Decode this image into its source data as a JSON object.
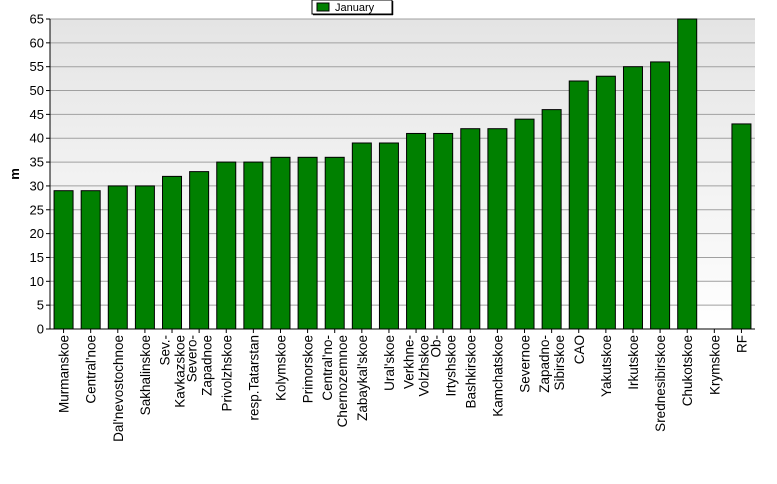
{
  "chart_data": {
    "type": "bar",
    "title": "",
    "xlabel": "",
    "ylabel": "m",
    "ylim": [
      0,
      65
    ],
    "yticks": [
      0,
      5,
      10,
      15,
      20,
      25,
      30,
      35,
      40,
      45,
      50,
      55,
      60,
      65
    ],
    "grid": true,
    "legend_position": "top-center",
    "bar_color": "#008000",
    "categories": [
      [
        "Murmanskoe"
      ],
      [
        "Central'noe"
      ],
      [
        "Dal'nevostochnoe"
      ],
      [
        "Sakhalinskoe"
      ],
      [
        "Sev.-",
        "Kavkazskoe"
      ],
      [
        "Severo-",
        "Zapadnoe"
      ],
      [
        "Privolzhskoe"
      ],
      [
        "resp.Tatarstan"
      ],
      [
        "Kolymskoe"
      ],
      [
        "Primorskoe"
      ],
      [
        "Central'no-",
        "Chernozemnoe"
      ],
      [
        "Zabaykal'skoe"
      ],
      [
        "Ural'skoe"
      ],
      [
        "Verkhne-",
        "Volzhskoe"
      ],
      [
        "Ob-",
        "Irtyshskoe"
      ],
      [
        "Bashkirskoe"
      ],
      [
        "Kamchatskoe"
      ],
      [
        "Severnoe"
      ],
      [
        "Zapadno-",
        "Sibirskoe"
      ],
      [
        "CAO"
      ],
      [
        "Yakutskoe"
      ],
      [
        "Irkutskoe"
      ],
      [
        "Srednesibirskoe"
      ],
      [
        "Chukotskoe"
      ],
      [
        "Krymskoe"
      ],
      [
        "RF"
      ]
    ],
    "series": [
      {
        "name": "January",
        "values": [
          29,
          29,
          30,
          30,
          32,
          33,
          35,
          35,
          36,
          36,
          36,
          39,
          39,
          41,
          41,
          42,
          42,
          44,
          46,
          52,
          53,
          55,
          56,
          65,
          null,
          43
        ]
      }
    ]
  }
}
